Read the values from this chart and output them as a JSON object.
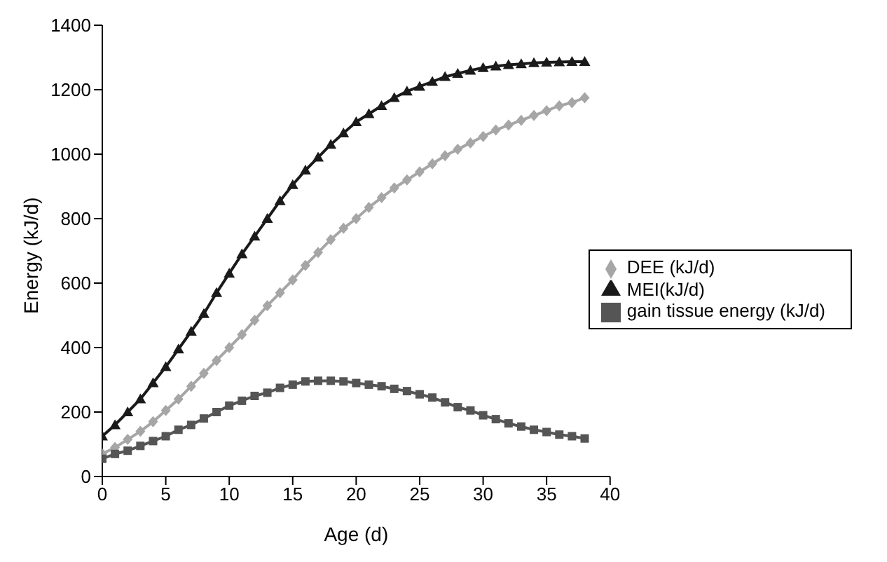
{
  "chart_data": {
    "type": "line",
    "xlabel": "Age (d)",
    "ylabel": "Energy (kJ/d)",
    "x": [
      0,
      1,
      2,
      3,
      4,
      5,
      6,
      7,
      8,
      9,
      10,
      11,
      12,
      13,
      14,
      15,
      16,
      17,
      18,
      19,
      20,
      21,
      22,
      23,
      24,
      25,
      26,
      27,
      28,
      29,
      30,
      31,
      32,
      33,
      34,
      35,
      36,
      37,
      38
    ],
    "xlim": [
      0,
      40
    ],
    "xticks": [
      0,
      5,
      10,
      15,
      20,
      25,
      30,
      35,
      40
    ],
    "ylim": [
      0,
      1400
    ],
    "yticks": [
      0,
      200,
      400,
      600,
      800,
      1000,
      1200,
      1400
    ],
    "grid": false,
    "legend": "right",
    "series": [
      {
        "name": "DEE (kJ/d)",
        "color": "#a6a6a6",
        "marker": "diamond",
        "values": [
          70,
          90,
          115,
          140,
          170,
          205,
          240,
          280,
          320,
          360,
          400,
          440,
          485,
          530,
          570,
          610,
          655,
          695,
          735,
          770,
          800,
          835,
          865,
          895,
          920,
          945,
          970,
          995,
          1015,
          1035,
          1055,
          1075,
          1090,
          1105,
          1120,
          1135,
          1150,
          1160,
          1175
        ]
      },
      {
        "name": "gain tissue energy (kJ/d)",
        "color": "#555555",
        "marker": "square",
        "values": [
          55,
          70,
          80,
          95,
          110,
          125,
          145,
          160,
          180,
          200,
          220,
          235,
          250,
          260,
          275,
          285,
          295,
          297,
          297,
          295,
          290,
          285,
          280,
          272,
          265,
          255,
          245,
          230,
          215,
          205,
          190,
          178,
          165,
          155,
          145,
          138,
          130,
          125,
          118
        ]
      },
      {
        "name": "MEI(kJ/d)",
        "color": "#1a1a1a",
        "marker": "triangle",
        "values": [
          125,
          160,
          200,
          240,
          290,
          340,
          395,
          450,
          505,
          570,
          630,
          690,
          745,
          800,
          855,
          905,
          950,
          990,
          1030,
          1065,
          1100,
          1125,
          1150,
          1175,
          1195,
          1210,
          1225,
          1240,
          1250,
          1260,
          1268,
          1273,
          1277,
          1280,
          1283,
          1285,
          1286,
          1287,
          1287
        ]
      }
    ]
  }
}
